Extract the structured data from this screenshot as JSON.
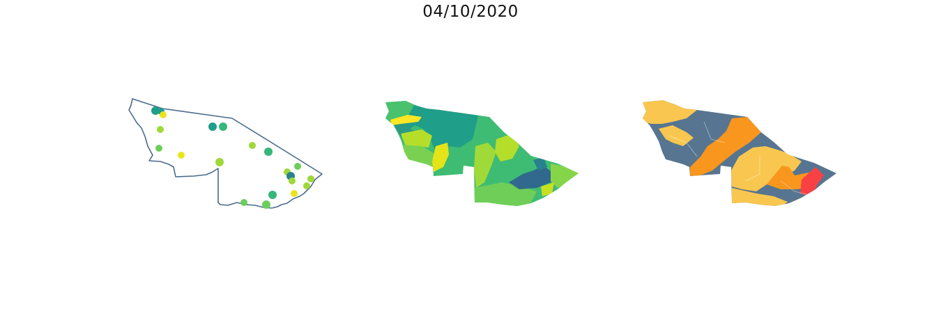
{
  "figure": {
    "title": "04/10/2020"
  },
  "colors": {
    "outline": "#4a6a8a",
    "stations": [
      "#eae41b",
      "#9fd83a",
      "#6cce5a",
      "#35b779",
      "#1f9e89",
      "#26828e",
      "#31688e"
    ],
    "viridis_fill": [
      "#fde725",
      "#b5de2b",
      "#6ece58",
      "#3fbc73",
      "#2aa783",
      "#1f9e89",
      "#31688e"
    ],
    "risk_classes": [
      "#f9c74f",
      "#f8961e",
      "#f94144",
      "#577590"
    ]
  },
  "panels": [
    {
      "name": "station-points-map",
      "type": "point-map"
    },
    {
      "name": "interpolated-surface-map",
      "type": "continuous-surface"
    },
    {
      "name": "risk-class-map",
      "type": "categorical-zones"
    }
  ]
}
